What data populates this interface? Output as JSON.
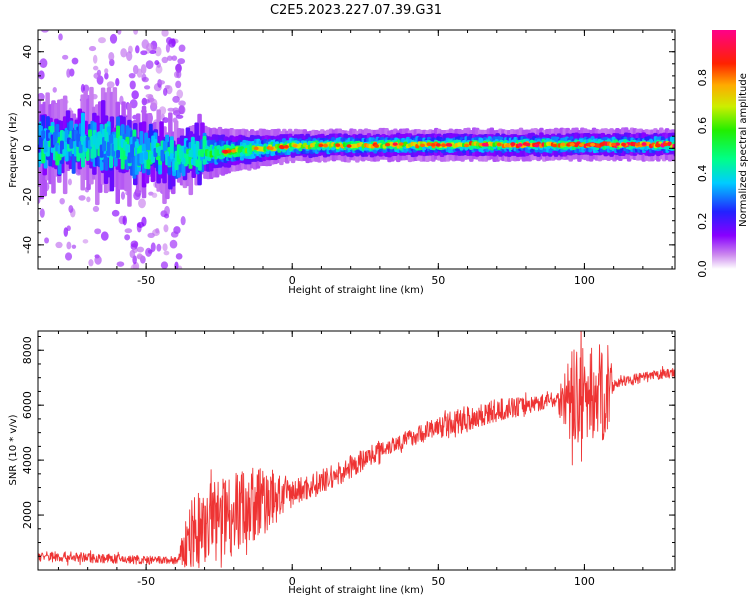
{
  "title": "C2E5.2023.227.07.39.G31",
  "chart_data": [
    {
      "type": "heatmap",
      "xlabel": "Height of straight line (km)",
      "ylabel": "Frequency (Hz)",
      "xlim": [
        -87,
        131
      ],
      "ylim": [
        -50,
        49
      ],
      "xticks": [
        -50,
        0,
        50,
        100
      ],
      "yticks": [
        -40,
        -20,
        0,
        20,
        40
      ],
      "colorbar": {
        "label": "Normalized spectral amplitude",
        "range": [
          0.0,
          1.0
        ],
        "ticks": [
          "0.0",
          "0.2",
          "0.4",
          "0.6",
          "0.8"
        ],
        "tick_values": [
          0.0,
          0.2,
          0.4,
          0.6,
          0.8
        ]
      },
      "ridge": [
        {
          "x": -87,
          "freq": 2,
          "width": 6,
          "amp": 0.3
        },
        {
          "x": -60,
          "freq": 1,
          "width": 7,
          "amp": 0.35
        },
        {
          "x": -40,
          "freq": -4,
          "width": 5,
          "amp": 0.4
        },
        {
          "x": -30,
          "freq": -2,
          "width": 5,
          "amp": 0.5
        },
        {
          "x": -20,
          "freq": -1,
          "width": 4,
          "amp": 0.55
        },
        {
          "x": 0,
          "freq": 1,
          "width": 3,
          "amp": 0.65
        },
        {
          "x": 50,
          "freq": 1.5,
          "width": 3,
          "amp": 0.7
        },
        {
          "x": 100,
          "freq": 1.5,
          "width": 3,
          "amp": 0.8
        },
        {
          "x": 131,
          "freq": 1.5,
          "width": 3,
          "amp": 0.85
        }
      ]
    },
    {
      "type": "line",
      "xlabel": "Height of straight line (km)",
      "ylabel": "SNR (10 * v/v)",
      "xlim": [
        -87,
        131
      ],
      "ylim": [
        0,
        8700
      ],
      "xticks": [
        -50,
        0,
        50,
        100
      ],
      "yticks": [
        2000,
        4000,
        6000,
        8000
      ],
      "color": "#ee3333",
      "trend": [
        {
          "x": -87,
          "y": 500
        },
        {
          "x": -70,
          "y": 450
        },
        {
          "x": -50,
          "y": 350
        },
        {
          "x": -39,
          "y": 350
        },
        {
          "x": -35,
          "y": 1200
        },
        {
          "x": -25,
          "y": 2000
        },
        {
          "x": -10,
          "y": 2500
        },
        {
          "x": 0,
          "y": 2800
        },
        {
          "x": 10,
          "y": 3200
        },
        {
          "x": 20,
          "y": 3700
        },
        {
          "x": 30,
          "y": 4400
        },
        {
          "x": 40,
          "y": 4800
        },
        {
          "x": 50,
          "y": 5200
        },
        {
          "x": 60,
          "y": 5500
        },
        {
          "x": 70,
          "y": 5800
        },
        {
          "x": 80,
          "y": 6000
        },
        {
          "x": 90,
          "y": 6200
        },
        {
          "x": 100,
          "y": 6300
        },
        {
          "x": 108,
          "y": 6500
        },
        {
          "x": 110,
          "y": 6800
        },
        {
          "x": 120,
          "y": 7000
        },
        {
          "x": 131,
          "y": 7200
        }
      ],
      "noise": [
        {
          "x": -87,
          "amp": 200
        },
        {
          "x": -39,
          "amp": 150
        },
        {
          "x": -35,
          "amp": 1500
        },
        {
          "x": -12,
          "amp": 1500
        },
        {
          "x": 0,
          "amp": 500
        },
        {
          "x": 40,
          "amp": 300
        },
        {
          "x": 60,
          "amp": 500
        },
        {
          "x": 90,
          "amp": 250
        },
        {
          "x": 96,
          "amp": 1800
        },
        {
          "x": 108,
          "amp": 1800
        },
        {
          "x": 110,
          "amp": 200
        },
        {
          "x": 131,
          "amp": 180
        }
      ]
    }
  ]
}
